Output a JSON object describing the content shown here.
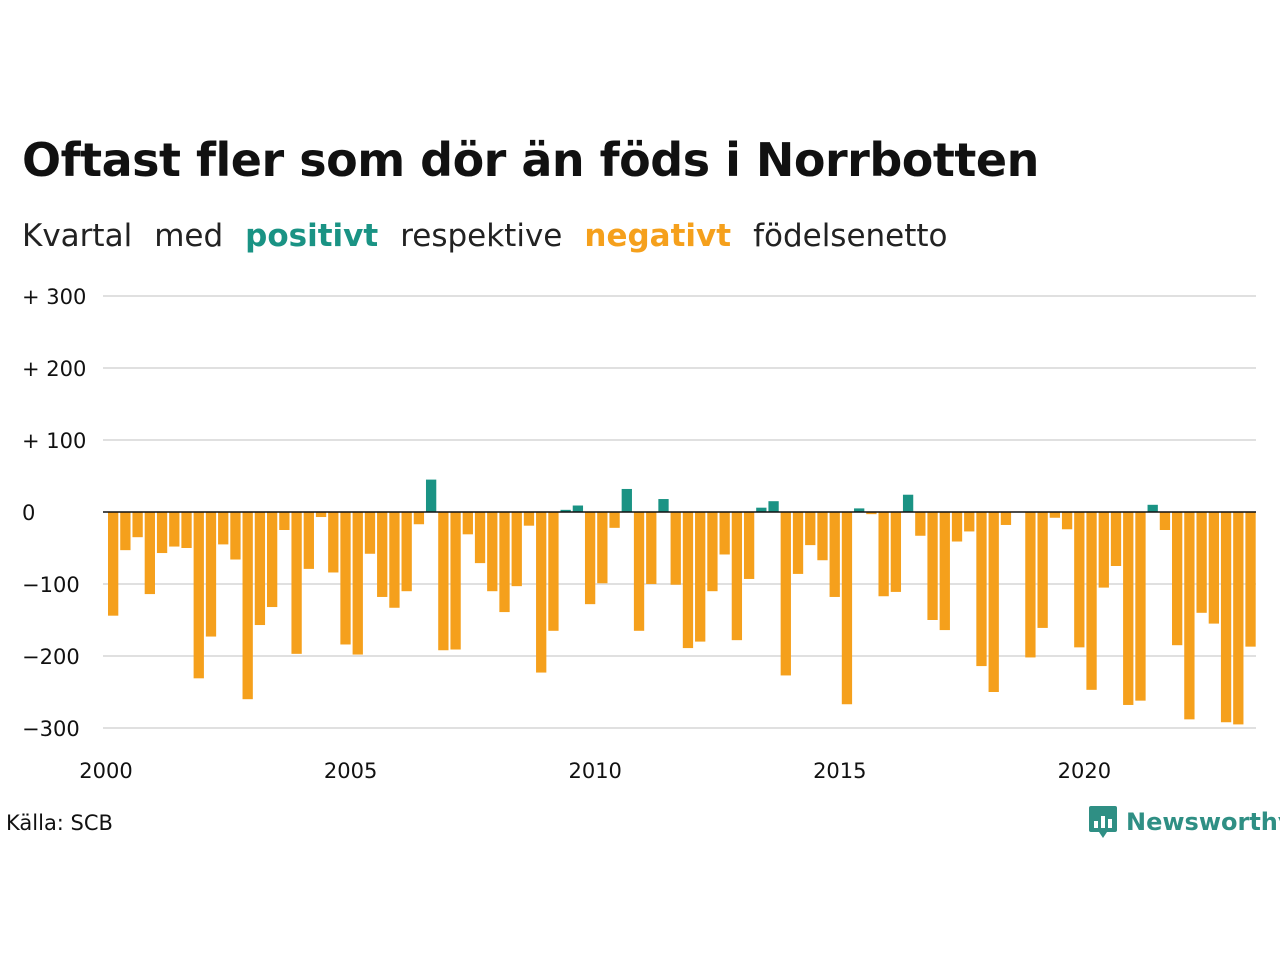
{
  "header": {
    "title": "Oftast fler som dör än föds i Norrbotten",
    "subtitle_parts": [
      "Kvartal",
      "med",
      "positivt",
      "respektive",
      "negativt",
      "födelsenetto"
    ]
  },
  "footer": {
    "source": "Källa: SCB",
    "brand": "Newsworthy",
    "brand_icon": "bar-chart-speech-bubble-icon"
  },
  "colors": {
    "positive": "#1a9384",
    "negative": "#f5a01c",
    "grid": "#e0e0e0"
  },
  "chart_data": {
    "type": "bar",
    "x_unit": "quarter",
    "x_start": "2000 Q1",
    "x_ticks": [
      "2000",
      "2005",
      "2010",
      "2015",
      "2020"
    ],
    "y_ticks": [
      "+ 300",
      "+ 200",
      "+ 100",
      "0",
      "−100",
      "−200",
      "−300"
    ],
    "ylim": [
      -300,
      300
    ],
    "grid": "horizontal",
    "legend": "none",
    "values": [
      -144,
      -53,
      -35,
      -114,
      -57,
      -48,
      -50,
      -231,
      -173,
      -45,
      -66,
      -260,
      -157,
      -132,
      -25,
      -197,
      -79,
      -7,
      -84,
      -184,
      -198,
      -58,
      -118,
      -133,
      -110,
      -17,
      45,
      -192,
      -191,
      -31,
      -71,
      -110,
      -139,
      -103,
      -19,
      -223,
      -165,
      3,
      9,
      -128,
      -99,
      -22,
      32,
      -165,
      -100,
      18,
      -101,
      -189,
      -180,
      -110,
      -59,
      -178,
      -93,
      6,
      15,
      -227,
      -86,
      -46,
      -67,
      -118,
      -267,
      5,
      -3,
      -117,
      -111,
      24,
      -33,
      -150,
      -164,
      -41,
      -27,
      -214,
      -250,
      -18,
      0,
      -202,
      -161,
      -8,
      -24,
      -188,
      -247,
      -105,
      -75,
      -268,
      -262,
      10,
      -25,
      -185,
      -288,
      -140,
      -155,
      -292,
      -295,
      -187
    ]
  }
}
